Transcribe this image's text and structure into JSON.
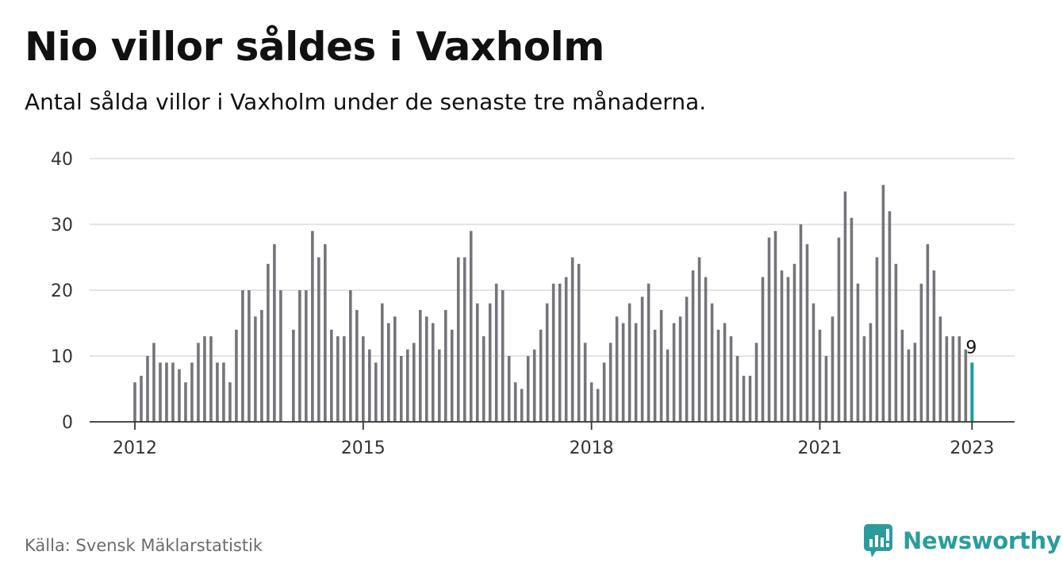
{
  "title": "Nio villor såldes i Vaxholm",
  "subtitle": "Antal sålda villor i Vaxholm under de senaste tre månaderna.",
  "source": "Källa: Svensk Mäklarstatistik",
  "brand": {
    "name": "Newsworthy",
    "icon": "newsworthy-logo-icon"
  },
  "colors": {
    "bar": "#75747a",
    "highlight": "#1a9e98",
    "grid": "#dcdcdc",
    "axis": "#333333",
    "brand": "#2a9d9a"
  },
  "chart_data": {
    "type": "bar",
    "x_start": "2012-01",
    "frequency": "monthly",
    "values": [
      6,
      7,
      10,
      12,
      9,
      9,
      9,
      8,
      6,
      9,
      12,
      13,
      13,
      9,
      9,
      6,
      14,
      20,
      20,
      16,
      17,
      24,
      27,
      20,
      null,
      14,
      20,
      20,
      29,
      25,
      27,
      14,
      13,
      13,
      20,
      17,
      13,
      11,
      9,
      18,
      15,
      16,
      10,
      11,
      12,
      17,
      16,
      15,
      11,
      17,
      14,
      25,
      25,
      29,
      18,
      13,
      18,
      21,
      20,
      10,
      6,
      5,
      10,
      11,
      14,
      18,
      21,
      21,
      22,
      25,
      24,
      12,
      6,
      5,
      9,
      12,
      16,
      15,
      18,
      15,
      19,
      21,
      14,
      17,
      11,
      15,
      16,
      19,
      23,
      25,
      22,
      18,
      14,
      15,
      13,
      10,
      7,
      7,
      12,
      22,
      28,
      29,
      23,
      22,
      24,
      30,
      27,
      18,
      14,
      10,
      16,
      28,
      35,
      31,
      21,
      13,
      15,
      25,
      36,
      32,
      24,
      14,
      11,
      12,
      21,
      27,
      23,
      16,
      13,
      13,
      13,
      11,
      9
    ],
    "highlight_last": true,
    "annotation": {
      "text": "9"
    },
    "ylim": [
      0,
      40
    ],
    "y_ticks": [
      0,
      10,
      20,
      30,
      40
    ],
    "x_ticks": [
      {
        "label": "2012",
        "date": "2012-01"
      },
      {
        "label": "2015",
        "date": "2015-01"
      },
      {
        "label": "2018",
        "date": "2018-01"
      },
      {
        "label": "2021",
        "date": "2021-01"
      },
      {
        "label": "2023",
        "date": "2023-01"
      }
    ],
    "grid": true,
    "xlabel": "",
    "ylabel": ""
  }
}
